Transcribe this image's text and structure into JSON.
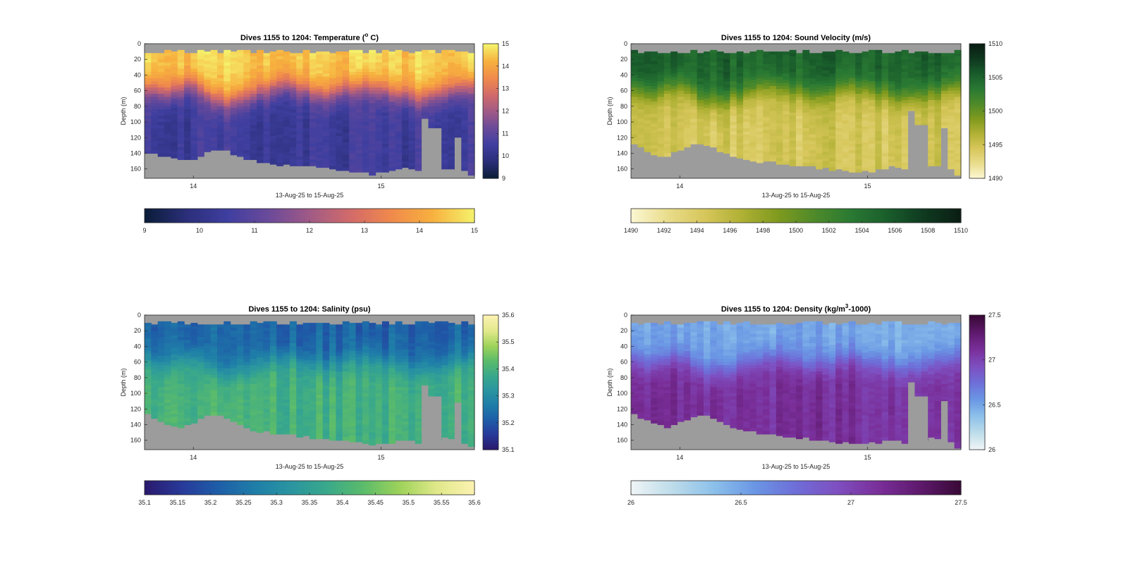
{
  "chart_data": [
    {
      "type": "heatmap",
      "id": "temperature",
      "title": "Dives 1155 to 1204: Temperature (",
      "title_superscript": "o",
      "title_suffix": " C)",
      "xlabel": "13-Aug-25 to 15-Aug-25",
      "ylabel": "Depth (m)",
      "ylim": [
        0,
        172
      ],
      "yticks": [
        "0",
        "20",
        "40",
        "60",
        "80",
        "100",
        "120",
        "140",
        "160"
      ],
      "xticks": [
        "14",
        "15"
      ],
      "clim": [
        9,
        15
      ],
      "colorbar_side_ticks": [
        "9",
        "10",
        "11",
        "12",
        "13",
        "14",
        "15"
      ],
      "colorbar_bottom_ticks": [
        "9",
        "10",
        "11",
        "12",
        "13",
        "14",
        "15"
      ],
      "colormap": [
        "#0b1d3a",
        "#2b2f7a",
        "#3f3fa0",
        "#6a4a9a",
        "#a05a86",
        "#d26a6a",
        "#f08a4c",
        "#f7b03e",
        "#f5f06a"
      ],
      "surface_value": 14.6,
      "deep_value": 10.4,
      "thermocline_depth_m": [
        55,
        58,
        60,
        62,
        58,
        55,
        52,
        50,
        55,
        62,
        68,
        70,
        72,
        70,
        68,
        66,
        64,
        60,
        58,
        55,
        52,
        50,
        52,
        55,
        58,
        60,
        62,
        64,
        62,
        60,
        58,
        56,
        54,
        52,
        54,
        56,
        58,
        60,
        62,
        64,
        66,
        68,
        66,
        64,
        62,
        60,
        58,
        56,
        54,
        52
      ],
      "bottom_depth_m": [
        138,
        140,
        142,
        144,
        146,
        147,
        148,
        146,
        142,
        138,
        135,
        134,
        136,
        140,
        144,
        146,
        148,
        150,
        151,
        152,
        153,
        153,
        154,
        154,
        155,
        156,
        157,
        158,
        159,
        160,
        161,
        162,
        163,
        164,
        165,
        164,
        163,
        162,
        160,
        158,
        160,
        162,
        164,
        160,
        158,
        157,
        158,
        160,
        162,
        165
      ],
      "gaps": [
        {
          "from_frac": 0.84,
          "to_frac": 0.86,
          "top_m": 96
        },
        {
          "from_frac": 0.86,
          "to_frac": 0.9,
          "top_m": 108
        },
        {
          "from_frac": 0.94,
          "to_frac": 0.96,
          "top_m": 120
        }
      ]
    },
    {
      "type": "heatmap",
      "id": "sound_velocity",
      "title": "Dives 1155 to 1204: Sound Velocity (m/s)",
      "xlabel": "13-Aug-25 to 15-Aug-25",
      "ylabel": "Depth (m)",
      "ylim": [
        0,
        172
      ],
      "yticks": [
        "0",
        "20",
        "40",
        "60",
        "80",
        "100",
        "120",
        "140",
        "160"
      ],
      "xticks": [
        "14",
        "15"
      ],
      "clim": [
        1490,
        1510
      ],
      "colorbar_side_ticks": [
        "1490",
        "1495",
        "1500",
        "1505",
        "1510"
      ],
      "colorbar_bottom_ticks": [
        "1490",
        "1492",
        "1494",
        "1496",
        "1498",
        "1500",
        "1502",
        "1504",
        "1506",
        "1508",
        "1510"
      ],
      "colormap": [
        "#fbf6d0",
        "#e9dc8a",
        "#d6c65a",
        "#b0b135",
        "#7f9a1e",
        "#4f8a2a",
        "#2a7a33",
        "#1a5e2c",
        "#0f3a20",
        "#0b1e14"
      ],
      "surface_value": 1505.2,
      "deep_value": 1494.6,
      "thermocline_depth_m": [
        55,
        58,
        60,
        62,
        58,
        55,
        52,
        50,
        55,
        62,
        68,
        70,
        72,
        70,
        68,
        66,
        64,
        60,
        58,
        55,
        52,
        50,
        52,
        55,
        58,
        60,
        62,
        64,
        62,
        60,
        58,
        56,
        54,
        52,
        54,
        56,
        58,
        60,
        62,
        64,
        66,
        68,
        66,
        64,
        62,
        60,
        58,
        56,
        54,
        52
      ],
      "bottom_depth_m": [
        128,
        132,
        136,
        140,
        142,
        141,
        138,
        134,
        130,
        127,
        126,
        128,
        132,
        136,
        140,
        143,
        145,
        147,
        148,
        149,
        150,
        150,
        151,
        152,
        153,
        154,
        155,
        156,
        157,
        158,
        159,
        160,
        161,
        162,
        163,
        162,
        161,
        160,
        158,
        156,
        158,
        160,
        162,
        158,
        156,
        155,
        156,
        158,
        160,
        168
      ],
      "gaps": [
        {
          "from_frac": 0.84,
          "to_frac": 0.86,
          "top_m": 86
        },
        {
          "from_frac": 0.86,
          "to_frac": 0.9,
          "top_m": 104
        },
        {
          "from_frac": 0.94,
          "to_frac": 0.96,
          "top_m": 108
        }
      ]
    },
    {
      "type": "heatmap",
      "id": "salinity",
      "title": "Dives 1155 to 1204: Salinity (psu)",
      "xlabel": "13-Aug-25 to 15-Aug-25",
      "ylabel": "Depth (m)",
      "ylim": [
        0,
        172
      ],
      "yticks": [
        "0",
        "20",
        "40",
        "60",
        "80",
        "100",
        "120",
        "140",
        "160"
      ],
      "xticks": [
        "14",
        "15"
      ],
      "clim": [
        35.1,
        35.6
      ],
      "colorbar_side_ticks": [
        "35.1",
        "35.2",
        "35.3",
        "35.4",
        "35.5",
        "35.6"
      ],
      "colorbar_bottom_ticks": [
        "35.1",
        "35.15",
        "35.2",
        "35.25",
        "35.3",
        "35.35",
        "35.4",
        "35.45",
        "35.5",
        "35.55",
        "35.6"
      ],
      "colormap": [
        "#2a1a6e",
        "#283a9a",
        "#1e5ea8",
        "#1f7ea8",
        "#2a95a0",
        "#3aa98a",
        "#5cbc6a",
        "#9fd35a",
        "#e0e88a",
        "#fbf2b0"
      ],
      "surface_value": 35.22,
      "deep_value": 35.4,
      "thermocline_depth_m": [
        55,
        58,
        60,
        62,
        58,
        55,
        52,
        50,
        55,
        62,
        68,
        70,
        72,
        70,
        68,
        66,
        64,
        60,
        58,
        55,
        52,
        50,
        52,
        55,
        58,
        60,
        62,
        64,
        62,
        60,
        58,
        56,
        54,
        52,
        54,
        56,
        58,
        60,
        62,
        64,
        66,
        68,
        66,
        64,
        62,
        60,
        58,
        56,
        54,
        52
      ],
      "bottom_depth_m": [
        126,
        130,
        134,
        138,
        140,
        141,
        140,
        136,
        132,
        128,
        126,
        127,
        130,
        134,
        138,
        142,
        145,
        147,
        148,
        149,
        150,
        151,
        152,
        153,
        154,
        155,
        156,
        157,
        158,
        159,
        160,
        161,
        162,
        163,
        164,
        163,
        162,
        161,
        159,
        157,
        159,
        161,
        163,
        159,
        157,
        156,
        157,
        159,
        162,
        168
      ],
      "gaps": [
        {
          "from_frac": 0.84,
          "to_frac": 0.86,
          "top_m": 90
        },
        {
          "from_frac": 0.86,
          "to_frac": 0.9,
          "top_m": 104
        },
        {
          "from_frac": 0.94,
          "to_frac": 0.96,
          "top_m": 112
        }
      ]
    },
    {
      "type": "heatmap",
      "id": "density",
      "title": "Dives 1155 to 1204: Density (kg/m",
      "title_superscript": "3",
      "title_suffix": "-1000)",
      "xlabel": "13-Aug-25 to 15-Aug-25",
      "ylabel": "Depth (m)",
      "ylim": [
        0,
        172
      ],
      "yticks": [
        "0",
        "20",
        "40",
        "60",
        "80",
        "100",
        "120",
        "140",
        "160"
      ],
      "xticks": [
        "14",
        "15"
      ],
      "clim": [
        26,
        27.5
      ],
      "colorbar_side_ticks": [
        "26",
        "26.5",
        "27",
        "27.5"
      ],
      "colorbar_bottom_ticks": [
        "26",
        "26.5",
        "27",
        "27.5"
      ],
      "colormap": [
        "#eef4f6",
        "#bcdcea",
        "#8cc0ea",
        "#6a96e4",
        "#6e6ed8",
        "#7e4fc0",
        "#7a2f9a",
        "#5f1a6e",
        "#3a0a38"
      ],
      "surface_value": 26.48,
      "deep_value": 27.12,
      "thermocline_depth_m": [
        55,
        58,
        60,
        62,
        58,
        55,
        52,
        50,
        55,
        62,
        68,
        70,
        72,
        70,
        68,
        66,
        64,
        60,
        58,
        55,
        52,
        50,
        52,
        55,
        58,
        60,
        62,
        64,
        62,
        60,
        58,
        56,
        54,
        52,
        54,
        56,
        58,
        60,
        62,
        64,
        66,
        68,
        66,
        64,
        62,
        60,
        58,
        56,
        54,
        52
      ],
      "bottom_depth_m": [
        126,
        130,
        134,
        138,
        140,
        141,
        140,
        136,
        132,
        128,
        126,
        127,
        130,
        134,
        138,
        142,
        145,
        147,
        148,
        149,
        150,
        151,
        152,
        153,
        154,
        155,
        156,
        157,
        158,
        159,
        160,
        161,
        162,
        163,
        164,
        163,
        162,
        161,
        159,
        157,
        159,
        161,
        163,
        159,
        157,
        156,
        157,
        159,
        162,
        168
      ],
      "gaps": [
        {
          "from_frac": 0.84,
          "to_frac": 0.86,
          "top_m": 86
        },
        {
          "from_frac": 0.86,
          "to_frac": 0.9,
          "top_m": 104
        },
        {
          "from_frac": 0.94,
          "to_frac": 0.96,
          "top_m": 110
        }
      ]
    }
  ]
}
